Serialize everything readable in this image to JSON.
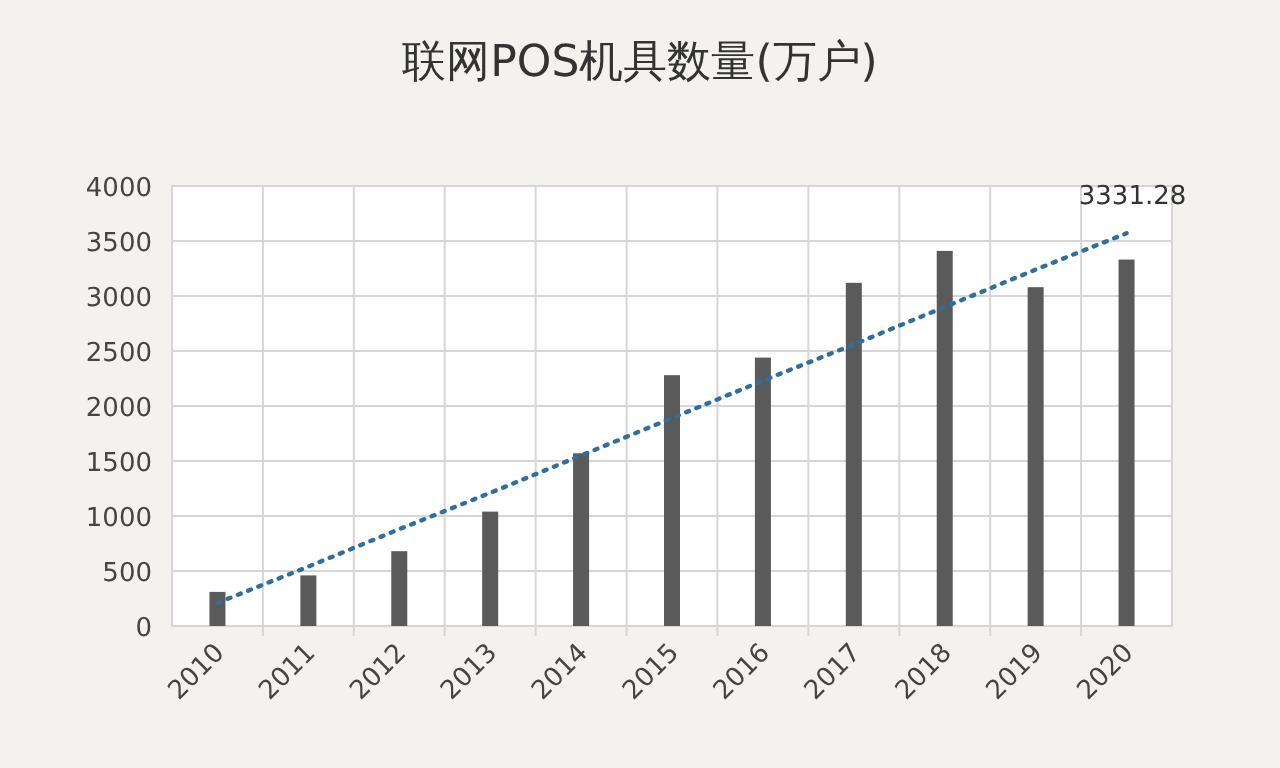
{
  "chart_data": {
    "type": "bar",
    "title": "联网POS机具数量(万户)",
    "categories": [
      "2010",
      "2011",
      "2012",
      "2013",
      "2014",
      "2015",
      "2016",
      "2017",
      "2018",
      "2019",
      "2020"
    ],
    "series": [
      {
        "color": "#5a5a5a",
        "values": [
          310,
          460,
          680,
          1040,
          1570,
          2280,
          2440,
          3120,
          3410,
          3080,
          3331.28
        ],
        "value_labels": [
          null,
          null,
          null,
          null,
          null,
          null,
          null,
          null,
          null,
          null,
          "3331.28"
        ]
      },
      {
        "type": "line",
        "color": "#2f6f9f",
        "line_style": "dotted",
        "values": [
          210,
          540,
          880,
          1210,
          1550,
          1890,
          2230,
          2560,
          2900,
          3240,
          3570
        ]
      }
    ],
    "ylim": [
      0,
      4000
    ],
    "yticks": [
      0,
      500,
      1000,
      1500,
      2000,
      2500,
      3000,
      3500,
      4000
    ],
    "grid": true
  }
}
